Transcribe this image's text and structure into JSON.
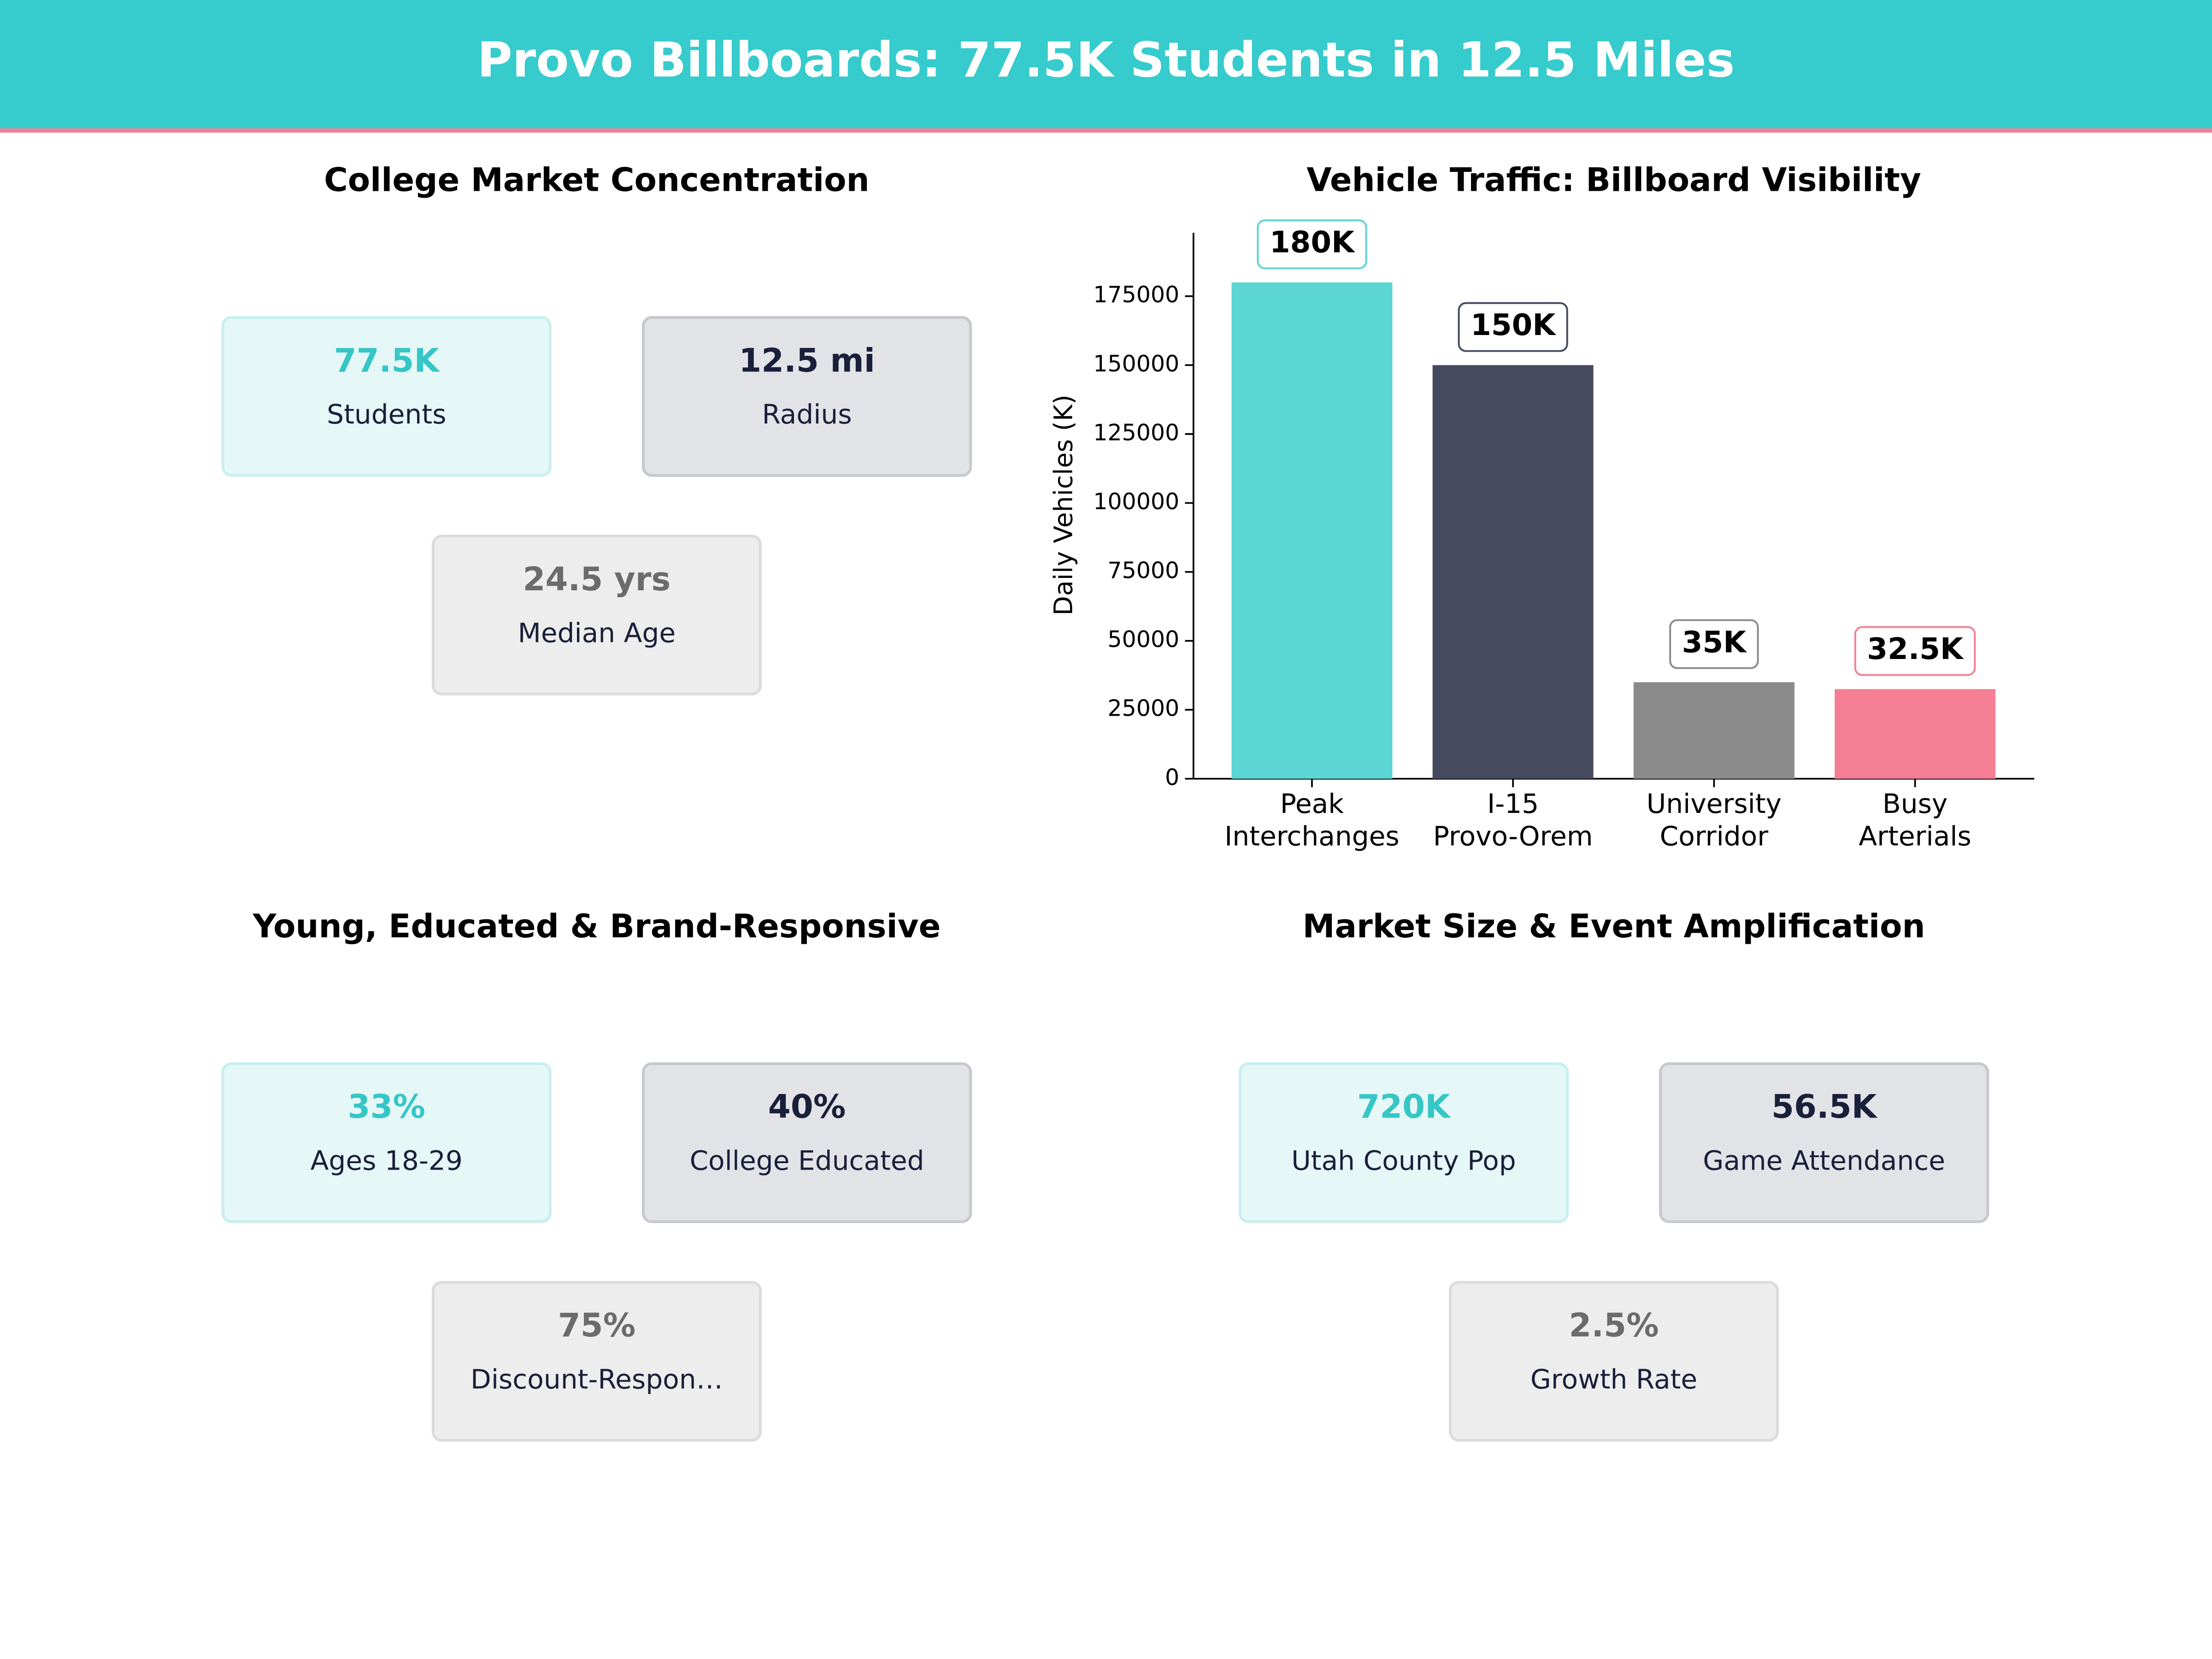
{
  "header": {
    "title": "Provo Billboards: 77.5K Students in 12.5 Miles"
  },
  "panels": [
    {
      "title": "College Market Concentration",
      "cards": [
        {
          "value": "77.5K",
          "label": "Students"
        },
        {
          "value": "12.5 mi",
          "label": "Radius"
        },
        {
          "value": "24.5 yrs",
          "label": "Median Age"
        }
      ]
    },
    {
      "title": "Young, Educated & Brand-Responsive",
      "cards": [
        {
          "value": "33%",
          "label": "Ages 18-29"
        },
        {
          "value": "40%",
          "label": "College Educated"
        },
        {
          "value": "75%",
          "label": "Discount-Respon…"
        }
      ]
    },
    {
      "title": "Market Size & Event Amplification",
      "cards": [
        {
          "value": "720K",
          "label": "Utah County Pop"
        },
        {
          "value": "56.5K",
          "label": "Game Attendance"
        },
        {
          "value": "2.5%",
          "label": "Growth Rate"
        }
      ]
    }
  ],
  "chart_data": {
    "type": "bar",
    "title": "Vehicle Traffic: Billboard Visibility",
    "y_label": "Daily Vehicles (K)",
    "categories": [
      "Peak\nInterchanges",
      "I-15\nProvo-Orem",
      "University\nCorridor",
      "Busy\nArterials"
    ],
    "values": [
      180000,
      150000,
      35000,
      32500
    ],
    "value_labels": [
      "180K",
      "150K",
      "35K",
      "32.5K"
    ],
    "colors": [
      "#5cd6d3",
      "#454a5e",
      "#8b8b8b",
      "#f47f94"
    ],
    "ylim": [
      0,
      198000
    ],
    "yticks": [
      0,
      25000,
      50000,
      75000,
      100000,
      125000,
      150000,
      175000
    ]
  }
}
